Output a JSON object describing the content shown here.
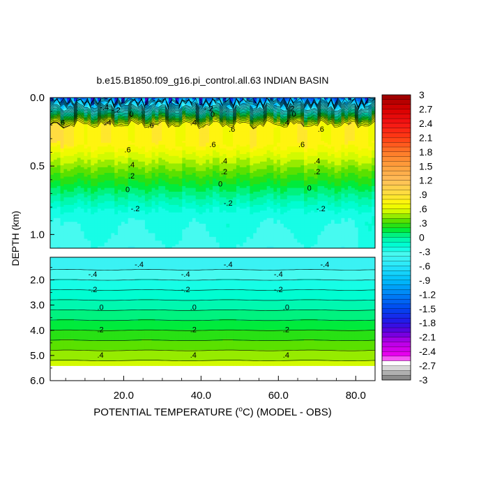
{
  "chart_data": {
    "type": "heatmap",
    "title": "b.e15.B1850.f09_g16.pi_control.all.63 INDIAN BASIN",
    "xlabel_prefix": "POTENTIAL TEMPERATURE (",
    "xlabel_unit_sup": "o",
    "xlabel_suffix": "C) (MODEL - OBS)",
    "ylabel": "DEPTH (km)",
    "x_range": [
      1,
      85
    ],
    "x_ticks": [
      {
        "value": 20,
        "label": "20.0"
      },
      {
        "value": 40,
        "label": "40.0"
      },
      {
        "value": 60,
        "label": "60.0"
      },
      {
        "value": 80,
        "label": "80.0"
      }
    ],
    "upper_panel": {
      "ylim": [
        0.0,
        1.1
      ],
      "y_ticks": [
        {
          "value": 0.0,
          "label": "0.0"
        },
        {
          "value": 0.5,
          "label": "0.5"
        },
        {
          "value": 1.0,
          "label": "1.0"
        }
      ],
      "contour_labels": [
        {
          "x": 15,
          "depth": 0.07,
          "text": "-.4"
        },
        {
          "x": 18,
          "depth": 0.09,
          "text": "-.2"
        },
        {
          "x": 22,
          "depth": 0.12,
          "text": "0"
        },
        {
          "x": 42,
          "depth": 0.08,
          "text": "-.2"
        },
        {
          "x": 43,
          "depth": 0.12,
          "text": "0"
        },
        {
          "x": 63,
          "depth": 0.08,
          "text": "-.2"
        },
        {
          "x": 64,
          "depth": 0.12,
          "text": "0"
        },
        {
          "x": 4,
          "depth": 0.18,
          "text": ".6"
        },
        {
          "x": 16,
          "depth": 0.18,
          "text": ".4"
        },
        {
          "x": 27,
          "depth": 0.2,
          "text": ".6"
        },
        {
          "x": 38,
          "depth": 0.18,
          "text": ".4"
        },
        {
          "x": 48,
          "depth": 0.23,
          "text": ".6"
        },
        {
          "x": 62,
          "depth": 0.18,
          "text": ".4"
        },
        {
          "x": 71,
          "depth": 0.23,
          "text": ".6"
        },
        {
          "x": 21,
          "depth": 0.38,
          "text": ".6"
        },
        {
          "x": 43,
          "depth": 0.34,
          "text": ".6"
        },
        {
          "x": 66,
          "depth": 0.34,
          "text": ".6"
        },
        {
          "x": 22,
          "depth": 0.49,
          "text": ".4"
        },
        {
          "x": 46,
          "depth": 0.46,
          "text": ".4"
        },
        {
          "x": 70,
          "depth": 0.46,
          "text": ".4"
        },
        {
          "x": 22,
          "depth": 0.57,
          "text": ".2"
        },
        {
          "x": 46,
          "depth": 0.54,
          "text": ".2"
        },
        {
          "x": 70,
          "depth": 0.54,
          "text": ".2"
        },
        {
          "x": 21,
          "depth": 0.67,
          "text": "0"
        },
        {
          "x": 45,
          "depth": 0.63,
          "text": "0"
        },
        {
          "x": 68,
          "depth": 0.66,
          "text": "0"
        },
        {
          "x": 23,
          "depth": 0.81,
          "text": "-.2"
        },
        {
          "x": 47,
          "depth": 0.77,
          "text": "-.2"
        },
        {
          "x": 71,
          "depth": 0.81,
          "text": "-.2"
        }
      ]
    },
    "lower_panel": {
      "ylim": [
        1.1,
        6.0
      ],
      "data_extent_depth": 5.4,
      "y_ticks": [
        {
          "value": 2.0,
          "label": "2.0"
        },
        {
          "value": 3.0,
          "label": "3.0"
        },
        {
          "value": 4.0,
          "label": "4.0"
        },
        {
          "value": 5.0,
          "label": "5.0"
        },
        {
          "value": 6.0,
          "label": "6.0"
        }
      ],
      "contour_labels": [
        {
          "x": 24,
          "depth": 1.37,
          "text": "-.4"
        },
        {
          "x": 47,
          "depth": 1.37,
          "text": "-.4"
        },
        {
          "x": 72,
          "depth": 1.37,
          "text": "-.4"
        },
        {
          "x": 12,
          "depth": 1.77,
          "text": "-.4"
        },
        {
          "x": 36,
          "depth": 1.77,
          "text": "-.4"
        },
        {
          "x": 60,
          "depth": 1.77,
          "text": "-.4"
        },
        {
          "x": 12,
          "depth": 2.37,
          "text": "-.2"
        },
        {
          "x": 36,
          "depth": 2.37,
          "text": "-.2"
        },
        {
          "x": 60,
          "depth": 2.37,
          "text": "-.2"
        },
        {
          "x": 14,
          "depth": 3.08,
          "text": ".0"
        },
        {
          "x": 38,
          "depth": 3.08,
          "text": ".0"
        },
        {
          "x": 62,
          "depth": 3.08,
          "text": ".0"
        },
        {
          "x": 14,
          "depth": 3.96,
          "text": ".2"
        },
        {
          "x": 38,
          "depth": 3.96,
          "text": ".2"
        },
        {
          "x": 62,
          "depth": 3.96,
          "text": ".2"
        },
        {
          "x": 14,
          "depth": 4.98,
          "text": ".4"
        },
        {
          "x": 38,
          "depth": 4.98,
          "text": ".4"
        },
        {
          "x": 62,
          "depth": 4.98,
          "text": ".4"
        }
      ]
    },
    "colorbar": {
      "min": -3.0,
      "max": 3.0,
      "interval": 0.1,
      "tick_labels": [
        "3",
        "2.7",
        "2.4",
        "2.1",
        "1.8",
        "1.5",
        "1.2",
        ".9",
        ".6",
        ".3",
        "0",
        "-.3",
        "-.6",
        "-.9",
        "-1.2",
        "-1.5",
        "-1.8",
        "-2.1",
        "-2.4",
        "-2.7",
        "-3"
      ]
    }
  }
}
